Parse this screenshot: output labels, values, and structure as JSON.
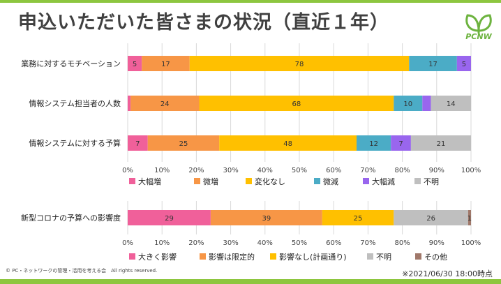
{
  "slide": {
    "title": "申込いただいた皆さまの状況（直近１年）",
    "logo_text": "PCNW",
    "footer_left": "© PC・ネットワークの管理・活用を考える会　All rights reserved.",
    "footer_right": "※2021/06/30 18:00時点"
  },
  "chart_data": [
    {
      "type": "bar",
      "orientation": "horizontal",
      "stacked": "percent",
      "categories": [
        "業務に対するモチベーション",
        "情報システム担当者の人数",
        "情報システムに対する予算"
      ],
      "series": [
        {
          "name": "大幅増",
          "color": "#f0609a",
          "values": [
            5,
            1,
            7
          ],
          "labels": [
            "5",
            "",
            "7"
          ]
        },
        {
          "name": "微増",
          "color": "#f79646",
          "values": [
            17,
            24,
            25
          ],
          "labels": [
            "17",
            "24",
            "25"
          ]
        },
        {
          "name": "変化なし",
          "color": "#ffc000",
          "values": [
            78,
            68,
            48
          ],
          "labels": [
            "78",
            "68",
            "48"
          ]
        },
        {
          "name": "微減",
          "color": "#4bacc6",
          "values": [
            17,
            10,
            12
          ],
          "labels": [
            "17",
            "10",
            "12"
          ]
        },
        {
          "name": "大幅減",
          "color": "#9966ee",
          "values": [
            5,
            3,
            7
          ],
          "labels": [
            "5",
            "",
            "7"
          ]
        },
        {
          "name": "不明",
          "color": "#bfbfbf",
          "values": [
            0,
            14,
            21
          ],
          "labels": [
            "",
            "14",
            "21"
          ]
        }
      ],
      "xticks": [
        "0%",
        "10%",
        "20%",
        "30%",
        "40%",
        "50%",
        "60%",
        "70%",
        "80%",
        "90%",
        "100%"
      ],
      "xlim": [
        0,
        100
      ],
      "grid": true,
      "legend": "bottom"
    },
    {
      "type": "bar",
      "orientation": "horizontal",
      "stacked": "percent",
      "categories": [
        "新型コロナの予算への影響度"
      ],
      "series": [
        {
          "name": "大きく影響",
          "color": "#f0609a",
          "values": [
            29
          ],
          "labels": [
            "29"
          ]
        },
        {
          "name": "影響は限定的",
          "color": "#f79646",
          "values": [
            39
          ],
          "labels": [
            "39"
          ]
        },
        {
          "name": "影響なし(計画通り)",
          "color": "#ffc000",
          "values": [
            25
          ],
          "labels": [
            "25"
          ]
        },
        {
          "name": "不明",
          "color": "#bfbfbf",
          "values": [
            26
          ],
          "labels": [
            "26"
          ]
        },
        {
          "name": "その他",
          "color": "#a0786a",
          "values": [
            1
          ],
          "labels": [
            "1"
          ]
        }
      ],
      "xticks": [
        "0%",
        "10%",
        "20%",
        "30%",
        "40%",
        "50%",
        "60%",
        "70%",
        "80%",
        "90%",
        "100%"
      ],
      "xlim": [
        0,
        100
      ],
      "grid": true,
      "legend": "bottom"
    }
  ]
}
